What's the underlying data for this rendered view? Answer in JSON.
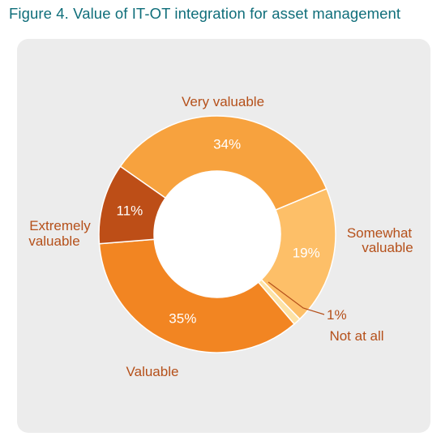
{
  "figure": {
    "title": "Figure 4. Value of IT-OT integration for asset management"
  },
  "chart_data": {
    "type": "pie",
    "donut": true,
    "title": "Figure 4. Value of IT-OT integration for asset management",
    "unit": "%",
    "slices": [
      {
        "label": "Very valuable",
        "label_lines": [
          "Very valuable"
        ],
        "value": 34,
        "value_label": "34%",
        "color": "#f7a23e"
      },
      {
        "label": "Somewhat valuable",
        "label_lines": [
          "Somewhat",
          "valuable"
        ],
        "value": 19,
        "value_label": "19%",
        "color": "#fdbf68"
      },
      {
        "label": "Not at all",
        "label_lines": [
          "Not at all"
        ],
        "value": 1,
        "value_label": "1%",
        "color": "#fde2a6"
      },
      {
        "label": "Valuable",
        "label_lines": [
          "Valuable"
        ],
        "value": 35,
        "value_label": "35%",
        "color": "#f28522"
      },
      {
        "label": "Extremely valuable",
        "label_lines": [
          "Extremely",
          "valuable"
        ],
        "value": 11,
        "value_label": "11%",
        "color": "#bd4e17"
      }
    ],
    "legend": "none",
    "grid": false
  }
}
